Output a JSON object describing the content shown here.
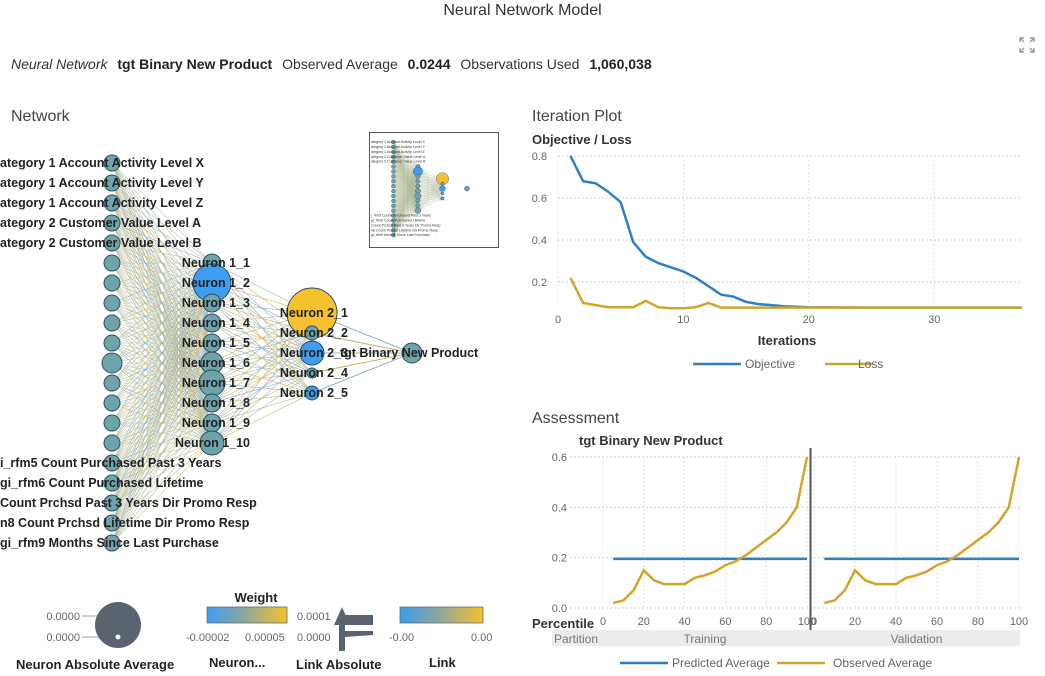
{
  "header": {
    "title": "Neural Network Model",
    "expand_icon": "expand-icon"
  },
  "summary": {
    "model_label": "Neural Network",
    "target_name": "tgt Binary New Product",
    "observed_avg_label": "Observed Average",
    "observed_avg_value": "0.0244",
    "obs_used_label": "Observations Used",
    "obs_used_value": "1,060,038"
  },
  "network": {
    "heading": "Network",
    "inputs_top": [
      "ategory 1 Account Activity Level X",
      "ategory 1 Account Activity Level Y",
      "ategory 1 Account Activity Level Z",
      "ategory 2 Customer Value Level A",
      "ategory 2 Customer Value Level B"
    ],
    "inputs_bottom": [
      "i_rfm5 Count Purchased Past 3 Years",
      "gi_rfm6 Count Purchased Lifetime",
      "Count Prchsd Past 3 Years Dir Promo Resp",
      "n8 Count Prchsd Lifetime Dir Promo Resp",
      "gi_rfm9 Months Since Last Purchase"
    ],
    "layer1": [
      "Neuron 1_1",
      "Neuron 1_2",
      "Neuron 1_3",
      "Neuron 1_4",
      "Neuron 1_5",
      "Neuron 1_6",
      "Neuron 1_7",
      "Neuron 1_8",
      "Neuron 1_9",
      "Neuron 1_10"
    ],
    "layer2": [
      "Neuron 2_1",
      "Neuron 2_2",
      "Neuron 2_3",
      "Neuron 2_4",
      "Neuron 2_5"
    ],
    "output": "tgt Binary New Product",
    "colors": {
      "input": "#6fa4ad",
      "blue": "#3d9ef0",
      "gold": "#f5c12e",
      "stroke": "#2f4f5a"
    }
  },
  "legends": {
    "neuron_abs_avg": {
      "title": "Neuron Absolute Average",
      "max": "0.0000",
      "min": "0.0000"
    },
    "neuron_weight": {
      "title": "Weight",
      "label": "Neuron...",
      "min": "-0.00002",
      "max": "0.00005"
    },
    "link_abs": {
      "title": "Link Absolute",
      "max": "0.0001",
      "min": "0.0000"
    },
    "link": {
      "title": "Link",
      "min": "-0.00",
      "max": "0.00"
    }
  },
  "iteration": {
    "heading": "Iteration Plot",
    "chart_data": {
      "type": "line",
      "title": "Objective / Loss",
      "xlabel": "Iterations",
      "ylabel": "",
      "xlim": [
        0,
        37
      ],
      "ylim": [
        0.1,
        0.8
      ],
      "xticks": [
        0,
        10,
        20,
        30
      ],
      "yticks": [
        0.2,
        0.4,
        0.6,
        0.8
      ],
      "grid": true,
      "legend": "bottom",
      "series": [
        {
          "name": "Objective",
          "color": "#2f7fc4",
          "x": [
            1,
            2,
            3,
            4,
            5,
            6,
            7,
            8,
            9,
            10,
            11,
            12,
            13,
            14,
            15,
            16,
            17,
            18,
            19,
            20,
            22,
            25,
            30,
            35,
            37
          ],
          "y": [
            0.8,
            0.68,
            0.67,
            0.63,
            0.58,
            0.39,
            0.32,
            0.29,
            0.27,
            0.25,
            0.22,
            0.18,
            0.14,
            0.13,
            0.105,
            0.095,
            0.09,
            0.085,
            0.082,
            0.08,
            0.079,
            0.078,
            0.078,
            0.078,
            0.078
          ]
        },
        {
          "name": "Loss",
          "color": "#d1a52b",
          "x": [
            1,
            2,
            3,
            4,
            5,
            6,
            7,
            8,
            9,
            10,
            11,
            12,
            13,
            14,
            15,
            16,
            17,
            18,
            19,
            20,
            22,
            25,
            30,
            35,
            37
          ],
          "y": [
            0.22,
            0.1,
            0.09,
            0.08,
            0.08,
            0.08,
            0.11,
            0.08,
            0.075,
            0.075,
            0.08,
            0.1,
            0.078,
            0.078,
            0.078,
            0.078,
            0.078,
            0.078,
            0.078,
            0.078,
            0.078,
            0.078,
            0.078,
            0.078,
            0.078
          ]
        }
      ]
    }
  },
  "assessment": {
    "heading": "Assessment",
    "chart_data": {
      "type": "line",
      "title": "tgt Binary New Product",
      "xlabel": "Percentile",
      "ylim": [
        0,
        0.6
      ],
      "xlim": [
        0,
        100
      ],
      "xticks": [
        0,
        20,
        40,
        60,
        80,
        100
      ],
      "yticks": [
        0.0,
        0.2,
        0.4,
        0.6
      ],
      "grid": true,
      "legend": "bottom",
      "partition_label": "Partition",
      "panels": [
        "Training",
        "Validation"
      ],
      "series": [
        {
          "name": "Predicted Average",
          "color": "#2f7fc4",
          "x": [
            5,
            100
          ],
          "y": [
            0.195,
            0.195
          ]
        },
        {
          "name": "Observed Average",
          "color": "#d1a52b",
          "x": [
            5,
            10,
            15,
            20,
            25,
            30,
            35,
            40,
            45,
            50,
            55,
            60,
            65,
            70,
            75,
            80,
            85,
            90,
            95,
            100
          ],
          "y": [
            0.02,
            0.03,
            0.07,
            0.15,
            0.11,
            0.095,
            0.095,
            0.095,
            0.12,
            0.13,
            0.145,
            0.17,
            0.185,
            0.21,
            0.24,
            0.27,
            0.3,
            0.34,
            0.4,
            0.6
          ]
        }
      ]
    }
  }
}
